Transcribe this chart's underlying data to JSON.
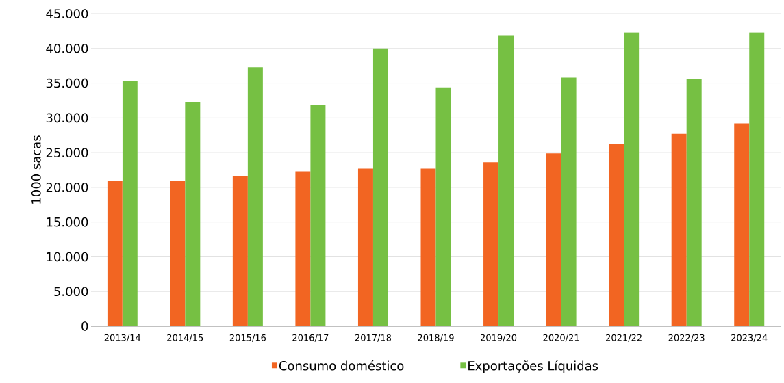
{
  "chart_data": {
    "type": "bar",
    "ylabel": "1000 sacas",
    "categories": [
      "2013/14",
      "2014/15",
      "2015/16",
      "2016/17",
      "2017/18",
      "2018/19",
      "2019/20",
      "2020/21",
      "2021/22",
      "2022/23",
      "2023/24"
    ],
    "series": [
      {
        "name": "Consumo doméstico",
        "color": "#f26522",
        "values": [
          20900,
          20900,
          21600,
          22300,
          22700,
          22700,
          23600,
          24900,
          26200,
          27700,
          29200
        ]
      },
      {
        "name": "Exportações Líquidas",
        "color": "#76c043",
        "values": [
          35300,
          32300,
          37300,
          31900,
          40000,
          34400,
          41900,
          35800,
          42300,
          35600,
          42300
        ]
      }
    ],
    "ylim": [
      0,
      45000
    ],
    "yticks": [
      0,
      {
        "value": 5000,
        "label": "5.000"
      },
      {
        "value": 10000,
        "label": "10.000"
      },
      {
        "value": 15000,
        "label": "15.000"
      },
      {
        "value": 20000,
        "label": "20.000"
      },
      {
        "value": 25000,
        "label": "25.000"
      },
      {
        "value": 30000,
        "label": "30.000"
      },
      {
        "value": 35000,
        "label": "35.000"
      },
      {
        "value": 40000,
        "label": "40.000"
      },
      {
        "value": 45000,
        "label": "45.000"
      }
    ],
    "grid": "y",
    "legend": "bottom"
  }
}
